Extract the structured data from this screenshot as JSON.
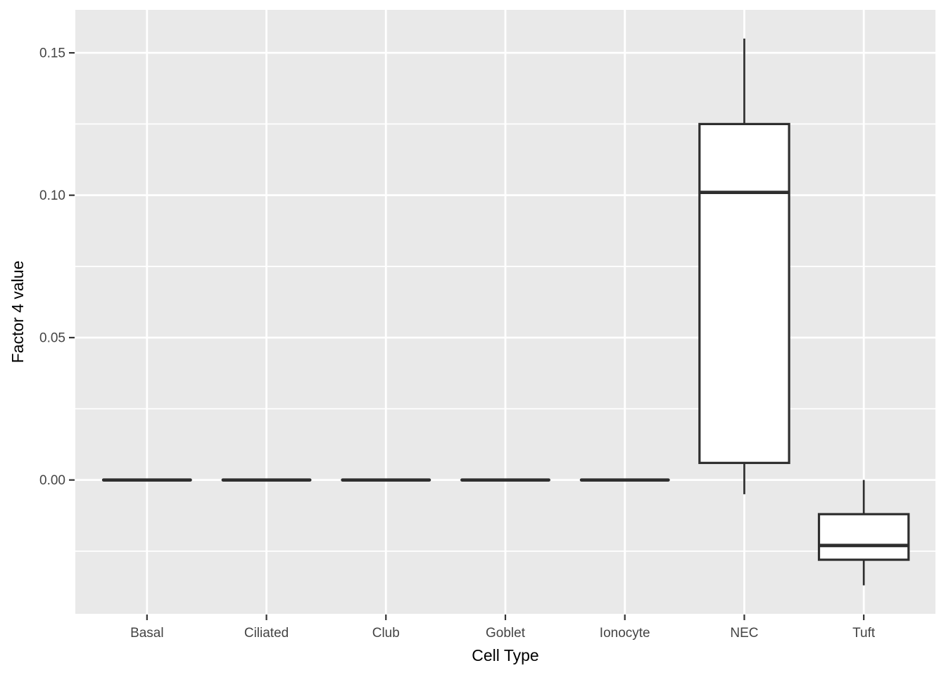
{
  "figure": {
    "background": "#FFFFFF"
  },
  "chart_data": {
    "type": "boxplot",
    "title": "",
    "xlabel": "Cell Type",
    "ylabel": "Factor 4 value",
    "categories": [
      "Basal",
      "Ciliated",
      "Club",
      "Goblet",
      "Ionocyte",
      "NEC",
      "Tuft"
    ],
    "series": [
      {
        "category": "Basal",
        "whisker_low": 0.0,
        "q1": 0.0,
        "median": 0.0,
        "q3": 0.0,
        "whisker_high": 0.0
      },
      {
        "category": "Ciliated",
        "whisker_low": 0.0,
        "q1": 0.0,
        "median": 0.0,
        "q3": 0.0,
        "whisker_high": 0.0
      },
      {
        "category": "Club",
        "whisker_low": 0.0,
        "q1": 0.0,
        "median": 0.0,
        "q3": 0.0,
        "whisker_high": 0.0
      },
      {
        "category": "Goblet",
        "whisker_low": 0.0,
        "q1": 0.0,
        "median": 0.0,
        "q3": 0.0,
        "whisker_high": 0.0
      },
      {
        "category": "Ionocyte",
        "whisker_low": 0.0,
        "q1": 0.0,
        "median": 0.0,
        "q3": 0.0,
        "whisker_high": 0.0
      },
      {
        "category": "NEC",
        "whisker_low": -0.005,
        "q1": 0.006,
        "median": 0.101,
        "q3": 0.125,
        "whisker_high": 0.155
      },
      {
        "category": "Tuft",
        "whisker_low": -0.037,
        "q1": -0.028,
        "median": -0.023,
        "q3": -0.012,
        "whisker_high": 0.0
      }
    ],
    "y_axis": {
      "major_ticks": [
        0.0,
        0.05,
        0.1,
        0.15
      ],
      "tick_labels": [
        "0.00",
        "0.05",
        "0.10",
        "0.15"
      ],
      "minor_ticks": [
        -0.025,
        0.025,
        0.075,
        0.125
      ],
      "ylim": [
        -0.047,
        0.1651
      ]
    },
    "grid": "on",
    "legend": "none",
    "style": {
      "panel_background": "#E9E9E9",
      "grid_color": "#FFFFFF",
      "box_stroke": "#2E2E2E",
      "box_fill": "#FFFFFF",
      "axis_tick_color": "#333333",
      "tick_label_color": "#444444",
      "axis_title_color": "#000000"
    }
  }
}
